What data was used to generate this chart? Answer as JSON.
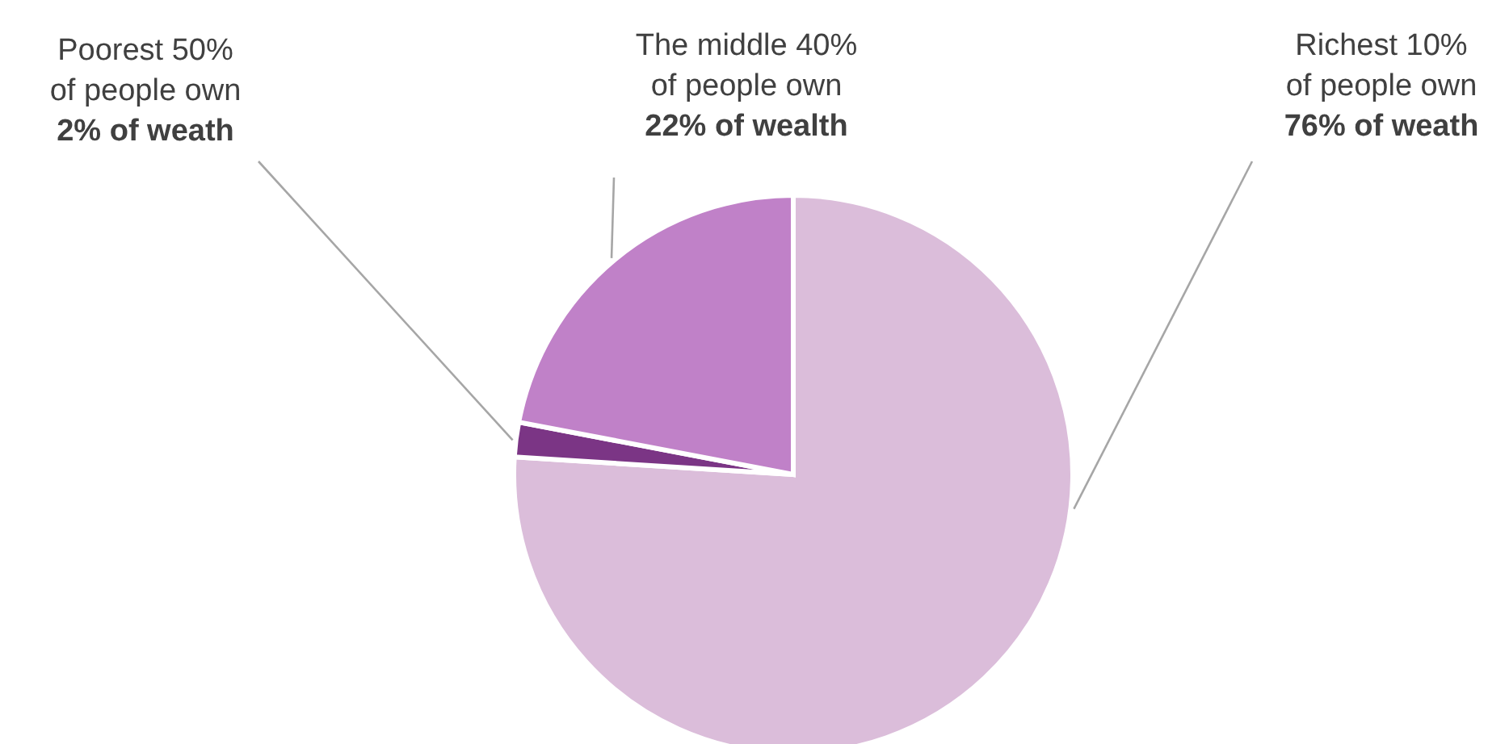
{
  "chart_data": {
    "type": "pie",
    "categories": [
      "Richest 10%\nof people own\n76% of weath",
      "Poorest 50%\nof people own\n2% of weath",
      "The middle 40%\nof people own\n22% of wealth"
    ],
    "values": [
      76,
      2,
      22
    ],
    "colors": [
      "#dbbdda",
      "#7b3585",
      "#c081c8"
    ],
    "legend": false
  }
}
